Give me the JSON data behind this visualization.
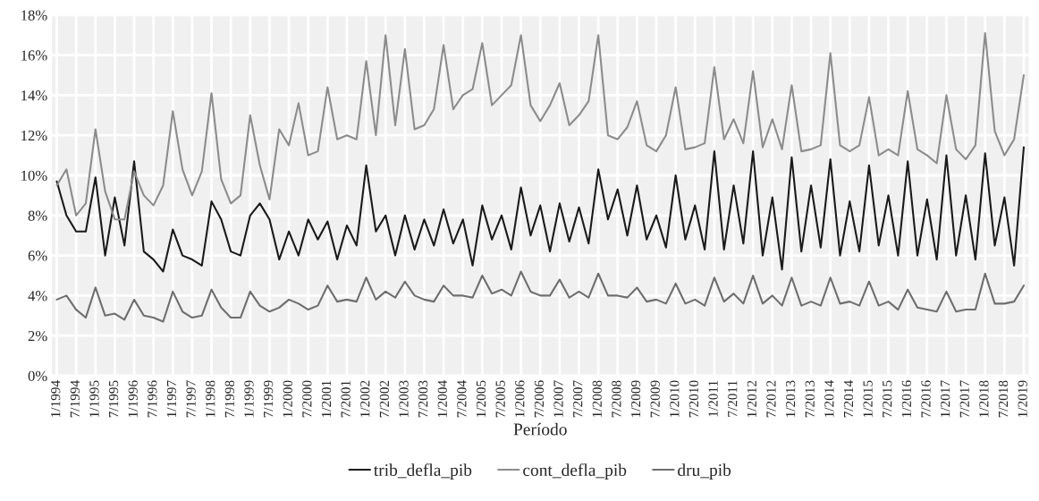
{
  "chart_data": {
    "type": "line",
    "xlabel": "Período",
    "categories": [
      "1/1994",
      null,
      "7/1994",
      null,
      "1/1995",
      null,
      "7/1995",
      null,
      "1/1996",
      null,
      "7/1996",
      null,
      "1/1997",
      null,
      "7/1997",
      null,
      "1/1998",
      null,
      "7/1998",
      null,
      "1/1999",
      null,
      "7/1999",
      null,
      "1/2000",
      null,
      "7/2000",
      null,
      "1/2001",
      null,
      "7/2001",
      null,
      "1/2002",
      null,
      "7/2002",
      null,
      "1/2003",
      null,
      "7/2003",
      null,
      "1/2004",
      null,
      "7/2004",
      null,
      "1/2005",
      null,
      "7/2005",
      null,
      "1/2006",
      null,
      "7/2006",
      null,
      "1/2007",
      null,
      "7/2007",
      null,
      "1/2008",
      null,
      "7/2008",
      null,
      "1/2009",
      null,
      "7/2009",
      null,
      "1/2010",
      null,
      "7/2010",
      null,
      "1/2011",
      null,
      "7/2011",
      null,
      "1/2012",
      null,
      "7/2012",
      null,
      "1/2013",
      null,
      "7/2013",
      null,
      "1/2014",
      null,
      "7/2014",
      null,
      "1/2015",
      null,
      "7/2015",
      null,
      "1/2016",
      null,
      "7/2016",
      null,
      "1/2017",
      null,
      "7/2017",
      null,
      "1/2018",
      null,
      "7/2018",
      null,
      "1/2019"
    ],
    "series": [
      {
        "name": "trib_defla_pib",
        "color": "#1a1a1a",
        "values": [
          9.7,
          8.0,
          7.2,
          7.2,
          9.9,
          6.0,
          8.9,
          6.5,
          10.7,
          6.2,
          5.8,
          5.2,
          7.3,
          6.0,
          5.8,
          5.5,
          8.7,
          7.8,
          6.2,
          6.0,
          8.0,
          8.6,
          7.8,
          5.8,
          7.2,
          6.0,
          7.8,
          6.8,
          7.7,
          5.8,
          7.5,
          6.5,
          10.5,
          7.2,
          8.0,
          6.0,
          8.0,
          6.3,
          7.8,
          6.5,
          8.3,
          6.6,
          7.8,
          5.5,
          8.5,
          6.8,
          8.0,
          6.3,
          9.4,
          7.0,
          8.5,
          6.2,
          8.6,
          6.7,
          8.4,
          6.6,
          10.3,
          7.8,
          9.3,
          7.0,
          9.5,
          6.8,
          8.0,
          6.4,
          10.0,
          6.8,
          8.5,
          6.3,
          11.2,
          6.3,
          9.5,
          6.6,
          11.2,
          6.0,
          8.9,
          5.3,
          10.9,
          6.2,
          9.5,
          6.4,
          10.8,
          6.0,
          8.7,
          6.2,
          10.5,
          6.5,
          9.0,
          6.0,
          10.7,
          6.0,
          8.8,
          5.8,
          11.0,
          6.0,
          9.0,
          5.8,
          11.1,
          6.5,
          8.9,
          5.5,
          11.4
        ]
      },
      {
        "name": "cont_defla_pib",
        "color": "#8c8c8c",
        "values": [
          9.5,
          10.3,
          8.0,
          8.6,
          12.3,
          9.2,
          7.8,
          7.8,
          10.2,
          9.0,
          8.5,
          9.5,
          13.2,
          10.3,
          9.0,
          10.2,
          14.1,
          9.8,
          8.6,
          9.0,
          13.0,
          10.5,
          8.8,
          12.3,
          11.5,
          13.6,
          11.0,
          11.2,
          14.4,
          11.8,
          12.0,
          11.8,
          15.7,
          12.0,
          17.0,
          12.5,
          16.3,
          12.3,
          12.5,
          13.3,
          16.5,
          13.3,
          14.0,
          14.3,
          16.6,
          13.5,
          14.0,
          14.5,
          17.0,
          13.5,
          12.7,
          13.5,
          14.6,
          12.5,
          13.0,
          13.7,
          17.0,
          12.0,
          11.8,
          12.4,
          13.7,
          11.5,
          11.2,
          12.0,
          14.4,
          11.3,
          11.4,
          11.6,
          15.4,
          11.8,
          12.8,
          11.6,
          15.2,
          11.4,
          12.8,
          11.3,
          14.5,
          11.2,
          11.3,
          11.5,
          16.1,
          11.5,
          11.2,
          11.5,
          13.9,
          11.0,
          11.3,
          11.0,
          14.2,
          11.3,
          11.0,
          10.6,
          14.0,
          11.3,
          10.8,
          11.5,
          17.1,
          12.2,
          11.0,
          11.8,
          15.0
        ]
      },
      {
        "name": "dru_pib",
        "color": "#6e6e6e",
        "values": [
          3.8,
          4.0,
          3.3,
          2.9,
          4.4,
          3.0,
          3.1,
          2.8,
          3.8,
          3.0,
          2.9,
          2.7,
          4.2,
          3.2,
          2.9,
          3.0,
          4.3,
          3.4,
          2.9,
          2.9,
          4.2,
          3.5,
          3.2,
          3.4,
          3.8,
          3.6,
          3.3,
          3.5,
          4.5,
          3.7,
          3.8,
          3.7,
          4.9,
          3.8,
          4.2,
          3.9,
          4.7,
          4.0,
          3.8,
          3.7,
          4.5,
          4.0,
          4.0,
          3.9,
          5.0,
          4.1,
          4.3,
          4.0,
          5.2,
          4.2,
          4.0,
          4.0,
          4.8,
          3.9,
          4.2,
          3.9,
          5.1,
          4.0,
          4.0,
          3.9,
          4.4,
          3.7,
          3.8,
          3.6,
          4.6,
          3.6,
          3.8,
          3.5,
          4.9,
          3.7,
          4.1,
          3.6,
          5.0,
          3.6,
          4.0,
          3.5,
          4.9,
          3.5,
          3.7,
          3.5,
          4.9,
          3.6,
          3.7,
          3.5,
          4.7,
          3.5,
          3.7,
          3.3,
          4.3,
          3.4,
          3.3,
          3.2,
          4.2,
          3.2,
          3.3,
          3.3,
          5.1,
          3.6,
          3.6,
          3.7,
          4.5
        ]
      }
    ],
    "ylim": [
      0,
      18
    ],
    "yticks": [
      {
        "value": 0,
        "label": "0%"
      },
      {
        "value": 2,
        "label": "2%"
      },
      {
        "value": 4,
        "label": "4%"
      },
      {
        "value": 6,
        "label": "6%"
      },
      {
        "value": 8,
        "label": "8%"
      },
      {
        "value": 10,
        "label": "10%"
      },
      {
        "value": 12,
        "label": "12%"
      },
      {
        "value": 14,
        "label": "14%"
      },
      {
        "value": 16,
        "label": "16%"
      },
      {
        "value": 18,
        "label": "18%"
      }
    ],
    "grid": true,
    "legend": "bottom",
    "marker": "none",
    "line_style": "solid"
  }
}
